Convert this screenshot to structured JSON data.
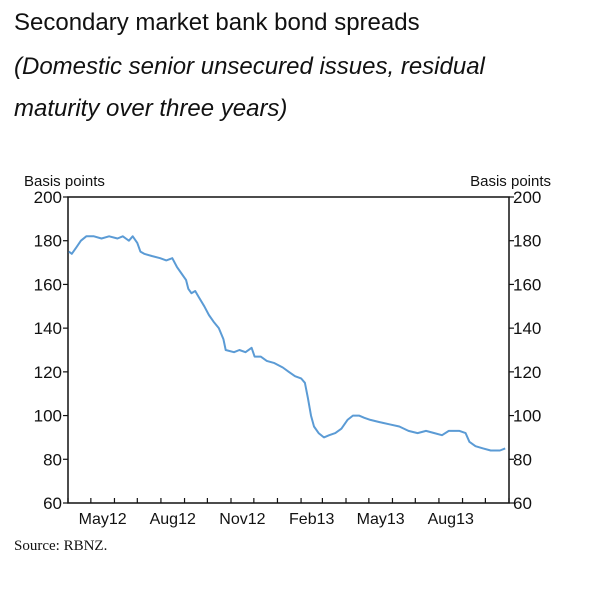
{
  "title": "Secondary market bank bond spreads",
  "subtitle": "(Domestic senior unsecured issues, residual maturity over three years)",
  "source": "Source: RBNZ.",
  "chart_data": {
    "type": "line",
    "ylabel_left": "Basis points",
    "ylabel_right": "Basis points",
    "ylim": [
      60,
      200
    ],
    "yticks": [
      60,
      80,
      100,
      120,
      140,
      160,
      180,
      200
    ],
    "xlim": [
      "2012-04-01",
      "2013-11-01"
    ],
    "xtick_labels": [
      "May12",
      "Aug12",
      "Nov12",
      "Feb13",
      "May13",
      "Aug13"
    ],
    "xticks": [
      "2012-04-01",
      "2012-05-01",
      "2012-06-01",
      "2012-07-01",
      "2012-08-01",
      "2012-09-01",
      "2012-10-01",
      "2012-11-01",
      "2012-12-01",
      "2013-01-01",
      "2013-02-01",
      "2013-03-01",
      "2013-04-01",
      "2013-05-01",
      "2013-06-01",
      "2013-07-01",
      "2013-08-01",
      "2013-09-01",
      "2013-10-01",
      "2013-11-01"
    ],
    "grid": false,
    "line_color": "#5b9bd5",
    "series": [
      {
        "points": [
          [
            "2012-04-02",
            175
          ],
          [
            "2012-04-06",
            174
          ],
          [
            "2012-04-12",
            177
          ],
          [
            "2012-04-18",
            180
          ],
          [
            "2012-04-25",
            182
          ],
          [
            "2012-05-05",
            182
          ],
          [
            "2012-05-15",
            181
          ],
          [
            "2012-05-25",
            182
          ],
          [
            "2012-06-05",
            181
          ],
          [
            "2012-06-12",
            182
          ],
          [
            "2012-06-20",
            180
          ],
          [
            "2012-06-25",
            182
          ],
          [
            "2012-07-01",
            179
          ],
          [
            "2012-07-05",
            175
          ],
          [
            "2012-07-10",
            174
          ],
          [
            "2012-07-20",
            173
          ],
          [
            "2012-07-31",
            172
          ],
          [
            "2012-08-08",
            171
          ],
          [
            "2012-08-16",
            172
          ],
          [
            "2012-08-22",
            168
          ],
          [
            "2012-08-28",
            165
          ],
          [
            "2012-09-03",
            162
          ],
          [
            "2012-09-06",
            158
          ],
          [
            "2012-09-10",
            156
          ],
          [
            "2012-09-15",
            157
          ],
          [
            "2012-09-20",
            154
          ],
          [
            "2012-09-27",
            150
          ],
          [
            "2012-10-03",
            146
          ],
          [
            "2012-10-09",
            143
          ],
          [
            "2012-10-16",
            140
          ],
          [
            "2012-10-22",
            135
          ],
          [
            "2012-10-25",
            130
          ],
          [
            "2012-11-05",
            129
          ],
          [
            "2012-11-12",
            130
          ],
          [
            "2012-11-20",
            129
          ],
          [
            "2012-11-28",
            131
          ],
          [
            "2012-12-02",
            127
          ],
          [
            "2012-12-10",
            127
          ],
          [
            "2012-12-18",
            125
          ],
          [
            "2012-12-28",
            124
          ],
          [
            "2013-01-08",
            122
          ],
          [
            "2013-01-16",
            120
          ],
          [
            "2013-01-24",
            118
          ],
          [
            "2013-02-01",
            117
          ],
          [
            "2013-02-06",
            115
          ],
          [
            "2013-02-10",
            108
          ],
          [
            "2013-02-14",
            100
          ],
          [
            "2013-02-18",
            95
          ],
          [
            "2013-02-24",
            92
          ],
          [
            "2013-03-03",
            90
          ],
          [
            "2013-03-10",
            91
          ],
          [
            "2013-03-18",
            92
          ],
          [
            "2013-03-26",
            94
          ],
          [
            "2013-04-03",
            98
          ],
          [
            "2013-04-10",
            100
          ],
          [
            "2013-04-18",
            100
          ],
          [
            "2013-04-25",
            99
          ],
          [
            "2013-05-03",
            98
          ],
          [
            "2013-05-15",
            97
          ],
          [
            "2013-05-28",
            96
          ],
          [
            "2013-06-10",
            95
          ],
          [
            "2013-06-22",
            93
          ],
          [
            "2013-07-04",
            92
          ],
          [
            "2013-07-15",
            93
          ],
          [
            "2013-07-26",
            92
          ],
          [
            "2013-08-05",
            91
          ],
          [
            "2013-08-14",
            93
          ],
          [
            "2013-08-28",
            93
          ],
          [
            "2013-09-05",
            92
          ],
          [
            "2013-09-10",
            88
          ],
          [
            "2013-09-18",
            86
          ],
          [
            "2013-09-28",
            85
          ],
          [
            "2013-10-08",
            84
          ],
          [
            "2013-10-20",
            84
          ],
          [
            "2013-10-27",
            85
          ]
        ]
      }
    ]
  }
}
